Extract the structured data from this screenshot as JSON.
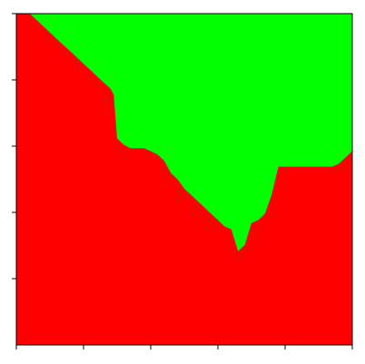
{
  "chart_data": {
    "type": "heatmap",
    "colors": {
      "background_region": "#ff0000",
      "foreground_region": "#00ff00",
      "axes_frame": "#000000"
    },
    "grid": false,
    "legend": "none",
    "boundary": {
      "x": [
        0,
        4,
        6,
        8,
        10,
        12,
        14,
        16,
        18,
        20,
        22,
        24,
        26,
        28,
        29,
        30,
        32,
        34,
        36,
        38,
        40,
        42,
        44,
        46,
        48,
        50,
        52,
        54,
        56,
        58,
        60,
        62,
        64,
        66,
        68,
        70,
        72,
        74,
        76,
        78,
        80,
        82,
        84,
        86,
        88,
        90,
        92,
        94,
        96,
        98,
        100
      ],
      "y": [
        100,
        100,
        98.1,
        96.2,
        94.3,
        92.4,
        90.5,
        88.7,
        86.8,
        84.9,
        83,
        81.1,
        79.2,
        77.4,
        75.5,
        62.3,
        60.4,
        59.4,
        59.4,
        59.4,
        58.5,
        57.5,
        55.6,
        51.9,
        50,
        47.2,
        45.3,
        43.4,
        41.5,
        39.6,
        37.7,
        35.8,
        34.9,
        28.3,
        30.2,
        36.8,
        37.7,
        39.6,
        45.3,
        53.8,
        53.8,
        53.8,
        53.8,
        53.8,
        53.8,
        53.8,
        53.8,
        53.8,
        54.7,
        56.6,
        58.5
      ]
    },
    "xlim": [
      0,
      100
    ],
    "ylim": [
      0,
      100
    ],
    "x_ticks": [
      0,
      20,
      40,
      60,
      80,
      100
    ],
    "y_ticks": [
      20,
      40,
      60,
      80,
      100
    ]
  }
}
